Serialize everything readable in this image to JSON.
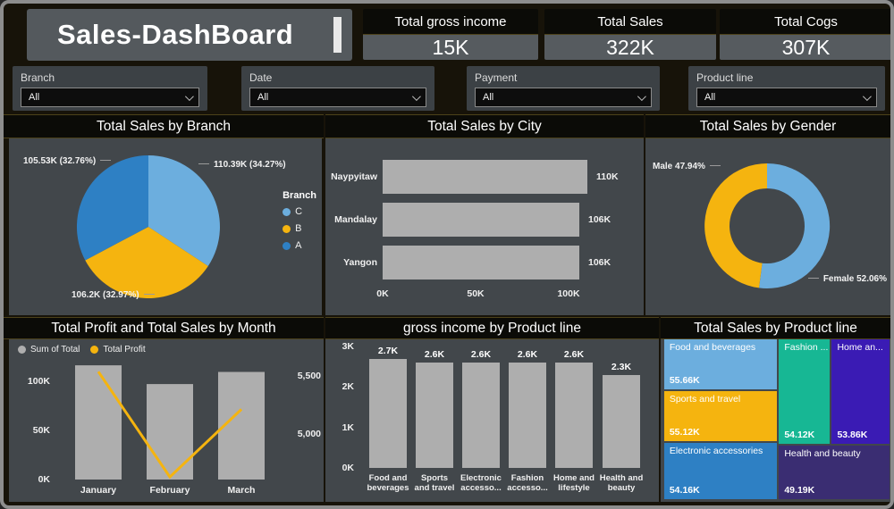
{
  "header": {
    "title": "Sales-DashBoard",
    "kpis": [
      {
        "label": "Total gross income",
        "value": "15K"
      },
      {
        "label": "Total Sales",
        "value": "322K"
      },
      {
        "label": "Total Cogs",
        "value": "307K"
      }
    ]
  },
  "filters": [
    {
      "label": "Branch",
      "value": "All"
    },
    {
      "label": "Date",
      "value": "All"
    },
    {
      "label": "Payment",
      "value": "All"
    },
    {
      "label": "Product line",
      "value": "All"
    }
  ],
  "colors": {
    "accent_orange": "#f5b40f",
    "light_blue": "#6caede",
    "mid_blue": "#2e80c4",
    "teal": "#17b794",
    "indigo": "#3a1bb4",
    "dark_purple": "#3a2d72",
    "bar_gray": "#aeaeae",
    "panel_bg": "#42474b",
    "titlebar_bg": "#0b0b07"
  },
  "chart_data": [
    {
      "id": "sales_by_branch",
      "type": "pie",
      "title": "Total Sales by Branch",
      "legend_title": "Branch",
      "legend_position": "right",
      "slices": [
        {
          "name": "C",
          "value_k": 110.39,
          "pct": 34.27,
          "label": "110.39K (34.27%)",
          "color": "#6caede",
          "label_pos": "top-right"
        },
        {
          "name": "B",
          "value_k": 106.2,
          "pct": 32.97,
          "label": "106.2K (32.97%)",
          "color": "#f5b40f",
          "label_pos": "bottom"
        },
        {
          "name": "A",
          "value_k": 105.53,
          "pct": 32.76,
          "label": "105.53K (32.76%)",
          "color": "#2e80c4",
          "label_pos": "top-left"
        }
      ]
    },
    {
      "id": "sales_by_city",
      "type": "bar",
      "title": "Total Sales by City",
      "categories": [
        "Naypyitaw",
        "Mandalay",
        "Yangon"
      ],
      "values_k": [
        110,
        106,
        106
      ],
      "value_labels": [
        "110K",
        "106K",
        "106K"
      ],
      "x_ticks": [
        "0K",
        "50K",
        "100K"
      ],
      "x_tick_values_k": [
        0,
        50,
        100
      ],
      "bar_color": "#aeaeae"
    },
    {
      "id": "sales_by_gender",
      "type": "pie",
      "subtype": "donut",
      "title": "Total Sales by Gender",
      "slices": [
        {
          "name": "Female",
          "pct": 52.06,
          "label": "Female 52.06%",
          "color": "#6caede",
          "label_pos": "bottom-right"
        },
        {
          "name": "Male",
          "pct": 47.94,
          "label": "Male 47.94%",
          "color": "#f5b40f",
          "label_pos": "top-left"
        }
      ]
    },
    {
      "id": "profit_and_sales_by_month",
      "type": "line",
      "subtype": "combo-column-line",
      "title": "Total Profit and Total Sales by Month",
      "categories": [
        "January",
        "February",
        "March"
      ],
      "series": [
        {
          "name": "Sum of Total",
          "type": "bar",
          "axis": "left",
          "values_k": [
            116.3,
            97.2,
            109.5
          ],
          "color": "#aeaeae"
        },
        {
          "name": "Total Profit",
          "type": "line",
          "axis": "right",
          "values": [
            5537,
            4630,
            5212
          ],
          "color": "#f5b40f"
        }
      ],
      "left_axis": {
        "ticks": [
          "100K",
          "50K",
          "0K"
        ],
        "tick_values_k": [
          100,
          50,
          0
        ]
      },
      "right_axis": {
        "ticks": [
          "5,500",
          "5,000"
        ],
        "tick_values": [
          5500,
          5000
        ]
      },
      "grid": false,
      "legend_position": "top-left"
    },
    {
      "id": "gross_income_by_product_line",
      "type": "bar",
      "subtype": "column",
      "title": "gross income by Product line",
      "categories": [
        "Food and\nbeverages",
        "Sports\nand travel",
        "Electronic\naccesso...",
        "Fashion\naccesso...",
        "Home and\nlifestyle",
        "Health and\nbeauty"
      ],
      "values_k": [
        2.7,
        2.6,
        2.6,
        2.6,
        2.6,
        2.3
      ],
      "value_labels": [
        "2.7K",
        "2.6K",
        "2.6K",
        "2.6K",
        "2.6K",
        "2.3K"
      ],
      "y_ticks": [
        "3K",
        "2K",
        "1K",
        "0K"
      ],
      "y_tick_values_k": [
        3,
        2,
        1,
        0
      ],
      "bar_color": "#aeaeae"
    },
    {
      "id": "sales_by_product_line",
      "type": "heatmap",
      "subtype": "treemap",
      "title": "Total Sales by Product line",
      "tiles": [
        {
          "name": "Food and beverages",
          "value_label": "55.66K",
          "color": "#6caede",
          "rect_pct": [
            1.5,
            0,
            49,
            31
          ]
        },
        {
          "name": "Sports and travel",
          "value_label": "55.12K",
          "color": "#f5b40f",
          "rect_pct": [
            1.5,
            32,
            49,
            30.5
          ]
        },
        {
          "name": "Electronic accessories",
          "value_label": "54.16K",
          "color": "#2e80c4",
          "rect_pct": [
            1.5,
            63.5,
            49,
            35
          ]
        },
        {
          "name": "Fashion ...",
          "value_label": "54.12K",
          "color": "#17b794",
          "rect_pct": [
            51.5,
            0,
            22,
            64.5
          ]
        },
        {
          "name": "Home an...",
          "value_label": "53.86K",
          "color": "#3a1bb4",
          "rect_pct": [
            74.5,
            0,
            25,
            64.5
          ]
        },
        {
          "name": "Health and beauty",
          "value_label": "49.19K",
          "color": "#3a2d72",
          "rect_pct": [
            51.5,
            65.5,
            48,
            33
          ]
        }
      ]
    }
  ]
}
